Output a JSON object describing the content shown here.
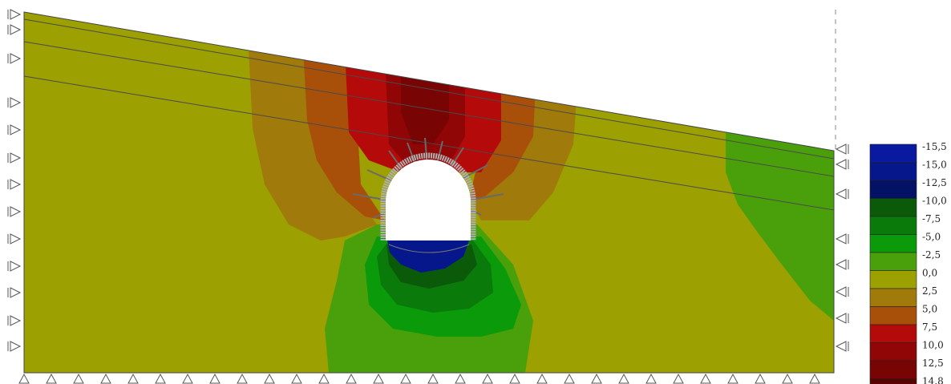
{
  "colors": {
    "background": "#ffffff",
    "outline": "#444444",
    "layer_line": "#4a4a4a",
    "bolt": "#6a6a6a",
    "tunnel_void": "#ffffff",
    "support_symbol": "#555555"
  },
  "legend": {
    "entries": [
      {
        "label": "-15,5",
        "color": "#0a1aa0"
      },
      {
        "label": "-15,0",
        "color": "#06178c"
      },
      {
        "label": "-12,5",
        "color": "#041266"
      },
      {
        "label": "-10,0",
        "color": "#0a5a0a"
      },
      {
        "label": "-7,5",
        "color": "#0a7a0a"
      },
      {
        "label": "-5,0",
        "color": "#0a9a0a"
      },
      {
        "label": "-2,5",
        "color": "#4aa00a"
      },
      {
        "label": "0,0",
        "color": "#9ca000"
      },
      {
        "label": "2,5",
        "color": "#a07a0a"
      },
      {
        "label": "5,0",
        "color": "#a8500a"
      },
      {
        "label": "7,5",
        "color": "#b40a0a"
      },
      {
        "label": "10,0",
        "color": "#900606"
      },
      {
        "label": "12,5",
        "color": "#780404"
      },
      {
        "label": "14,8",
        "color": "#5a0202"
      }
    ]
  },
  "model": {
    "support_symbol": "triangle",
    "tunnel_shape": "horseshoe"
  }
}
